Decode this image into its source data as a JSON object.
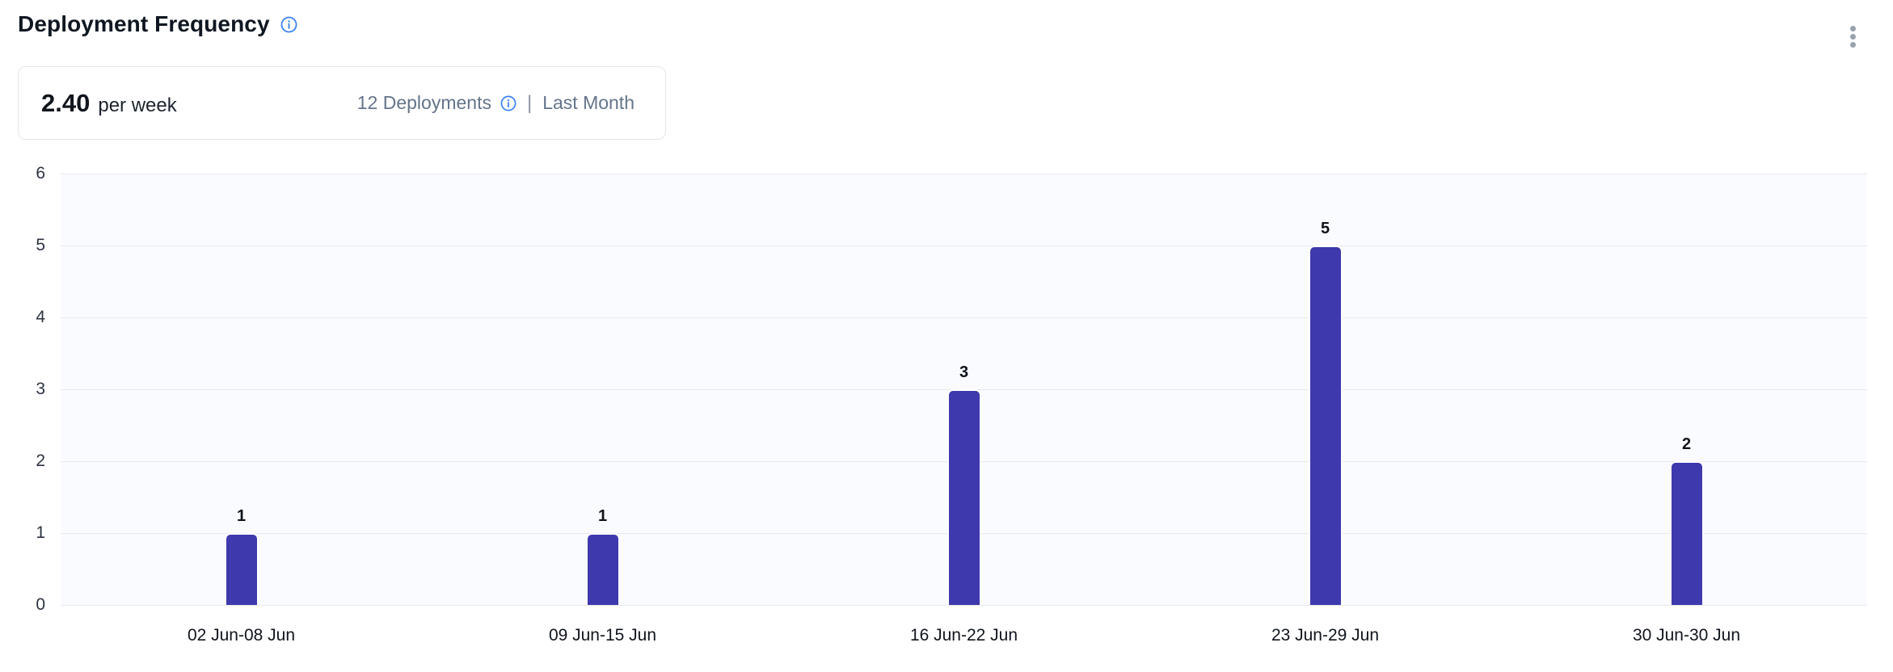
{
  "header": {
    "title": "Deployment Frequency"
  },
  "summary": {
    "rate_value": "2.40",
    "rate_unit": "per week",
    "deployments_label": "12 Deployments",
    "separator": "|",
    "period_label": "Last Month"
  },
  "chart_data": {
    "type": "bar",
    "title": "Deployment Frequency",
    "categories": [
      "02 Jun-08 Jun",
      "09 Jun-15 Jun",
      "16 Jun-22 Jun",
      "23 Jun-29 Jun",
      "30 Jun-30 Jun"
    ],
    "values": [
      1,
      1,
      3,
      5,
      2
    ],
    "xlabel": "",
    "ylabel": "",
    "ylim": [
      0,
      6
    ],
    "yticks": [
      0,
      1,
      2,
      3,
      4,
      5,
      6
    ],
    "grid": true,
    "legend": false,
    "data_labels": [
      1,
      1,
      3,
      5,
      2
    ],
    "bar_color": "#3e39ad",
    "plot_background": "#fafbfe"
  },
  "colors": {
    "accent_bar": "#3e39ad",
    "info_icon": "#3b82f6",
    "muted_text": "#64748b",
    "gridline": "#e7e9ee",
    "plot_background": "#fafbfe"
  }
}
